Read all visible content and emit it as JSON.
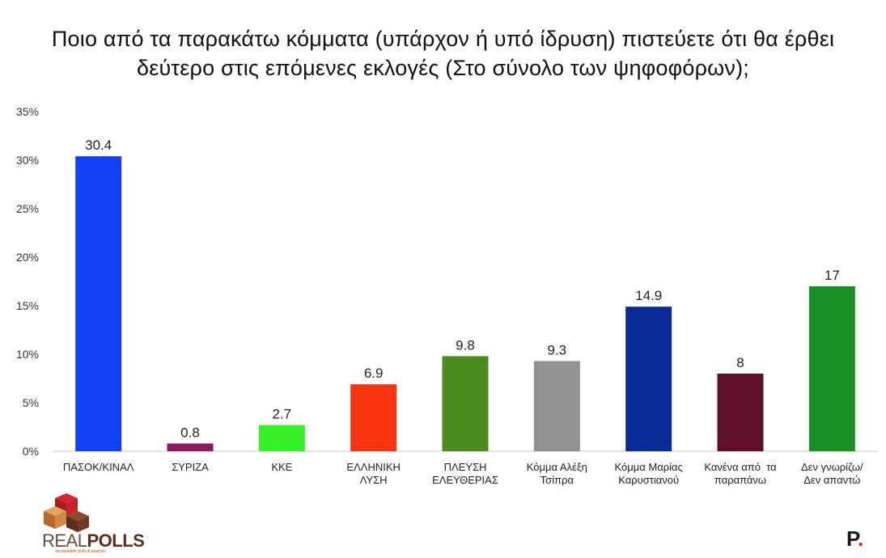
{
  "title": {
    "line1": "Ποιο από τα παρακάτω κόμματα (υπάρχον ή υπό ίδρυση) πιστεύετε ότι θα έρθει",
    "line2": "δεύτερο στις επόμενες εκλογές (Στο σύνολο των ψηφοφόρων);"
  },
  "logo": {
    "real": "REAL",
    "polls": "POLLS",
    "tagline": "accountable polls & analysis"
  },
  "brand": {
    "letter": "P",
    "dot": "."
  },
  "chart_data": {
    "type": "bar",
    "categories": [
      [
        "ΠΑΣΟΚ/ΚΙΝΑΛ"
      ],
      [
        "ΣΥΡΙΖΑ"
      ],
      [
        "ΚΚΕ"
      ],
      [
        "ΕΛΛΗΝΙΚΗ",
        "ΛΥΣΗ"
      ],
      [
        "ΠΛΕΥΣΗ",
        "ΕΛΕΥΘΕΡΙΑΣ"
      ],
      [
        "Κόμμα Αλέξη",
        "Τσίπρα"
      ],
      [
        "Κόμμα Μαρίας",
        "Καρυστιανού"
      ],
      [
        "Κανένα από  τα",
        "παραπάνω"
      ],
      [
        "Δεν γνωρίζω/",
        "Δεν απαντώ"
      ]
    ],
    "values": [
      30.4,
      0.8,
      2.7,
      6.9,
      9.8,
      9.3,
      14.9,
      8,
      17
    ],
    "value_labels": [
      "30.4",
      "0.8",
      "2.7",
      "6.9",
      "9.8",
      "9.3",
      "14.9",
      "8",
      "17"
    ],
    "colors": [
      "#1340f2",
      "#8b1a5e",
      "#37f02a",
      "#fa3311",
      "#4b8a1f",
      "#919191",
      "#0a2a96",
      "#5e0f2c",
      "#1b8f24"
    ],
    "yticks": [
      0,
      5,
      10,
      15,
      20,
      25,
      30,
      35
    ],
    "ytick_labels": [
      "0%",
      "5%",
      "10%",
      "15%",
      "20%",
      "25%",
      "30%",
      "35%"
    ],
    "ylim": [
      0,
      35
    ],
    "grid": false,
    "legend": false
  }
}
